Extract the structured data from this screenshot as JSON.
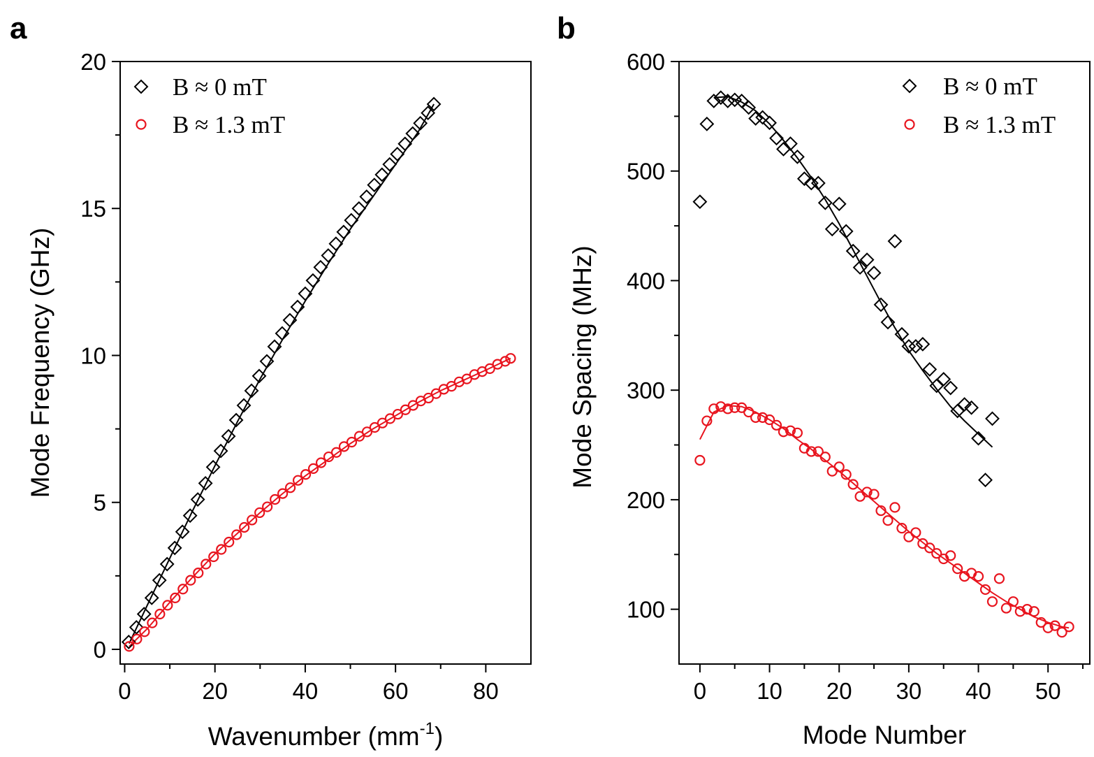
{
  "colors": {
    "black": "#000000",
    "red": "#e8141e"
  },
  "chart_data": [
    {
      "panel_label": "a",
      "type": "scatter",
      "xlabel_main": "Wavenumber (mm",
      "xlabel_sup": "-1",
      "xlabel_close": ")",
      "ylabel": "Mode Frequency (GHz)",
      "xlim": [
        -1,
        90
      ],
      "ylim": [
        -0.5,
        20
      ],
      "xticks": [
        0,
        20,
        40,
        60,
        80
      ],
      "yticks": [
        0,
        5,
        10,
        15,
        20
      ],
      "legend_position": "top-left",
      "series": [
        {
          "name": "B ≈ 0 mT",
          "marker": "diamond",
          "color": "#000000",
          "x": [
            0.9,
            2.6,
            4.3,
            6.0,
            7.7,
            9.4,
            11.1,
            12.8,
            14.5,
            16.2,
            17.9,
            19.6,
            21.3,
            23.0,
            24.7,
            26.4,
            28.1,
            29.8,
            31.5,
            33.2,
            34.9,
            36.6,
            38.3,
            40.0,
            41.7,
            43.4,
            45.1,
            46.8,
            48.5,
            50.2,
            51.9,
            53.6,
            55.3,
            57.0,
            58.7,
            60.4,
            62.1,
            63.8,
            65.5,
            67.2,
            68.5
          ],
          "y": [
            0.25,
            0.75,
            1.2,
            1.75,
            2.35,
            2.9,
            3.45,
            4.0,
            4.55,
            5.1,
            5.65,
            6.2,
            6.75,
            7.25,
            7.8,
            8.3,
            8.8,
            9.3,
            9.8,
            10.3,
            10.75,
            11.2,
            11.65,
            12.1,
            12.55,
            13.0,
            13.4,
            13.8,
            14.2,
            14.6,
            15.0,
            15.4,
            15.8,
            16.15,
            16.5,
            16.85,
            17.2,
            17.55,
            17.9,
            18.25,
            18.55
          ],
          "fit_x": [
            1,
            5,
            10,
            15,
            20,
            25,
            30,
            35,
            40,
            45,
            50,
            55,
            60,
            65,
            68.5
          ],
          "fit_y": [
            0.2,
            1.5,
            3.1,
            4.7,
            6.25,
            7.75,
            9.2,
            10.55,
            11.85,
            13.1,
            14.3,
            15.4,
            16.5,
            17.6,
            18.55
          ]
        },
        {
          "name": "B ≈ 1.3 mT",
          "marker": "circle",
          "color": "#e8141e",
          "x": [
            1.0,
            2.7,
            4.4,
            6.1,
            7.8,
            9.5,
            11.2,
            12.9,
            14.6,
            16.3,
            18.0,
            19.7,
            21.4,
            23.1,
            24.8,
            26.5,
            28.2,
            29.9,
            31.6,
            33.3,
            35.0,
            36.7,
            38.4,
            40.1,
            41.8,
            43.5,
            45.2,
            46.9,
            48.6,
            50.3,
            52.0,
            53.7,
            55.4,
            57.1,
            58.8,
            60.5,
            62.2,
            63.9,
            65.6,
            67.3,
            69.0,
            70.7,
            72.4,
            74.1,
            75.8,
            77.5,
            79.2,
            80.9,
            82.6,
            84.3,
            85.5
          ],
          "y": [
            0.1,
            0.35,
            0.6,
            0.9,
            1.2,
            1.5,
            1.75,
            2.05,
            2.35,
            2.6,
            2.9,
            3.15,
            3.4,
            3.65,
            3.9,
            4.15,
            4.4,
            4.65,
            4.85,
            5.1,
            5.3,
            5.5,
            5.75,
            5.95,
            6.15,
            6.35,
            6.55,
            6.7,
            6.9,
            7.05,
            7.25,
            7.4,
            7.55,
            7.7,
            7.85,
            8.0,
            8.15,
            8.3,
            8.45,
            8.55,
            8.7,
            8.85,
            8.95,
            9.1,
            9.2,
            9.35,
            9.45,
            9.55,
            9.7,
            9.8,
            9.9
          ],
          "fit_x": [
            1,
            5,
            10,
            15,
            20,
            25,
            30,
            35,
            40,
            45,
            50,
            55,
            60,
            65,
            70,
            75,
            80,
            85.5
          ],
          "fit_y": [
            0.1,
            0.7,
            1.6,
            2.45,
            3.25,
            3.95,
            4.65,
            5.3,
            5.9,
            6.45,
            7.0,
            7.5,
            7.95,
            8.4,
            8.8,
            9.15,
            9.5,
            9.9
          ]
        }
      ]
    },
    {
      "panel_label": "b",
      "type": "scatter",
      "xlabel": "Mode Number",
      "ylabel": "Mode Spacing (MHz)",
      "xlim": [
        -3,
        56
      ],
      "ylim": [
        50,
        600
      ],
      "xticks": [
        0,
        10,
        20,
        30,
        40,
        50
      ],
      "yticks": [
        100,
        200,
        300,
        400,
        500,
        600
      ],
      "legend_position": "top-right",
      "series": [
        {
          "name": "B ≈ 0 mT",
          "marker": "diamond",
          "color": "#000000",
          "x": [
            0,
            1,
            2,
            3,
            4,
            5,
            6,
            7,
            8,
            9,
            10,
            11,
            12,
            13,
            14,
            15,
            16,
            17,
            18,
            19,
            20,
            21,
            22,
            23,
            24,
            25,
            26,
            27,
            28,
            29,
            30,
            31,
            32,
            33,
            34,
            35,
            36,
            37,
            38,
            39,
            40,
            41,
            42
          ],
          "y": [
            472,
            543,
            564,
            567,
            564,
            565,
            564,
            558,
            548,
            549,
            544,
            530,
            520,
            525,
            513,
            493,
            489,
            489,
            471,
            447,
            470,
            445,
            427,
            412,
            419,
            407,
            378,
            362,
            436,
            351,
            340,
            340,
            342,
            319,
            304,
            310,
            302,
            281,
            287,
            284,
            256,
            218,
            274
          ],
          "fit_x": [
            2,
            4,
            6,
            8,
            10,
            12,
            14,
            16,
            18,
            20,
            22,
            24,
            26,
            28,
            30,
            32,
            34,
            36,
            38,
            40,
            42
          ],
          "fit_y": [
            567,
            568,
            563,
            555,
            543,
            528,
            512,
            494,
            474,
            452,
            428,
            404,
            380,
            357,
            336,
            318,
            301,
            285,
            272,
            260,
            248
          ]
        },
        {
          "name": "B ≈ 1.3 mT",
          "marker": "circle",
          "color": "#e8141e",
          "x": [
            0,
            1,
            2,
            3,
            4,
            5,
            6,
            7,
            8,
            9,
            10,
            11,
            12,
            13,
            14,
            15,
            16,
            17,
            18,
            19,
            20,
            21,
            22,
            23,
            24,
            25,
            26,
            27,
            28,
            29,
            30,
            31,
            32,
            33,
            34,
            35,
            36,
            37,
            38,
            39,
            40,
            41,
            42,
            43,
            44,
            45,
            46,
            47,
            48,
            49,
            50,
            51,
            52,
            53
          ],
          "y": [
            236,
            272,
            283,
            285,
            283,
            284,
            284,
            280,
            275,
            275,
            273,
            268,
            262,
            263,
            261,
            247,
            244,
            244,
            239,
            226,
            230,
            223,
            214,
            203,
            207,
            205,
            190,
            181,
            193,
            174,
            166,
            170,
            160,
            156,
            151,
            146,
            149,
            137,
            130,
            133,
            130,
            118,
            107,
            128,
            101,
            107,
            98,
            100,
            98,
            88,
            83,
            85,
            79,
            84
          ],
          "fit_x": [
            0,
            2,
            4,
            6,
            8,
            10,
            12,
            14,
            16,
            18,
            20,
            22,
            24,
            26,
            28,
            30,
            32,
            34,
            36,
            38,
            40,
            42,
            44,
            46,
            48,
            50,
            52,
            53
          ],
          "fit_y": [
            255,
            280,
            286,
            285,
            280,
            273,
            265,
            255,
            246,
            236,
            226,
            215,
            204,
            193,
            182,
            171,
            161,
            151,
            142,
            133,
            124,
            115,
            107,
            100,
            93,
            88,
            84,
            83
          ]
        }
      ]
    }
  ]
}
